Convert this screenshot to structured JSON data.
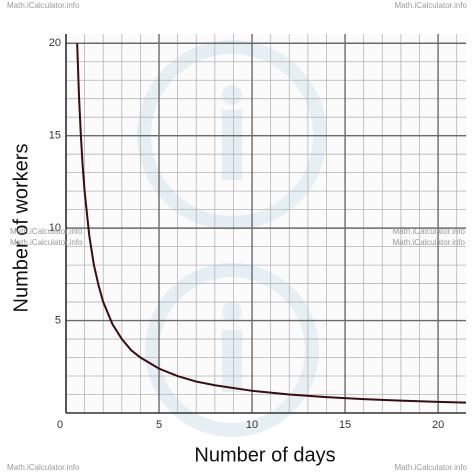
{
  "chart_data": {
    "type": "line",
    "x_label": "Number of days",
    "y_label": "Number of workers",
    "x": [
      0.6,
      0.7,
      0.8,
      0.9,
      1,
      1.25,
      1.5,
      1.75,
      2,
      2.5,
      3,
      3.5,
      4,
      5,
      6,
      7,
      8,
      10,
      12,
      14,
      16,
      18,
      20,
      21.5
    ],
    "series": [
      {
        "color": "#3b0c0c",
        "values": [
          20,
          17.1,
          15,
          13.3,
          12,
          9.6,
          8,
          6.9,
          6,
          4.8,
          4,
          3.4,
          3,
          2.4,
          2,
          1.7,
          1.5,
          1.2,
          1,
          0.86,
          0.75,
          0.67,
          0.6,
          0.56
        ]
      }
    ],
    "xlim": [
      0,
      21.5
    ],
    "ylim": [
      0,
      20.5
    ],
    "xticks": [
      0,
      5,
      10,
      15,
      20
    ],
    "yticks": [
      5,
      10,
      15,
      20
    ],
    "grid": true,
    "minor_grid": 1,
    "watermarks": [
      "Math.iCalculator.info",
      "Math.iCalculator.info",
      "Math.iCalculator.info",
      "Math.iCalculator.info",
      "Math.iCalculator.info",
      "Math.iCalculator.info",
      "Math.iCalculator.info",
      "Math.iCalculator.info"
    ]
  }
}
